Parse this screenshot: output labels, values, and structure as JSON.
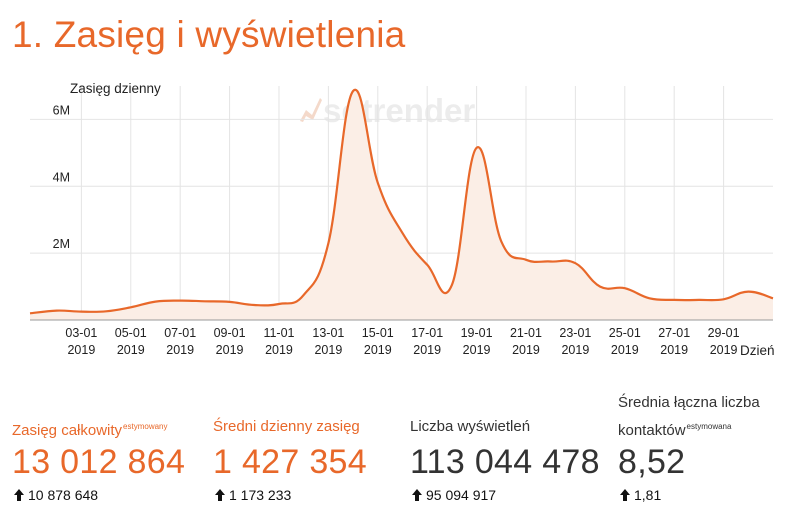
{
  "title": "1. Zasięg i wyświetlenia",
  "watermark": "sotrender",
  "colors": {
    "accent": "#e8682a",
    "text": "#333333",
    "area_fill": "#fbeee6",
    "grid": "#e4e4e4"
  },
  "chart_data": {
    "type": "area",
    "ylabel": "Zasięg dzienny",
    "xlabel": "Dzień",
    "ylim": [
      0,
      7000000
    ],
    "yticks": [
      {
        "value": 2000000,
        "label": "2M"
      },
      {
        "value": 4000000,
        "label": "4M"
      },
      {
        "value": 6000000,
        "label": "6M"
      }
    ],
    "xticks": [
      {
        "day": 2,
        "label": "03-01",
        "year": "2019"
      },
      {
        "day": 4,
        "label": "05-01",
        "year": "2019"
      },
      {
        "day": 6,
        "label": "07-01",
        "year": "2019"
      },
      {
        "day": 8,
        "label": "09-01",
        "year": "2019"
      },
      {
        "day": 10,
        "label": "11-01",
        "year": "2019"
      },
      {
        "day": 12,
        "label": "13-01",
        "year": "2019"
      },
      {
        "day": 14,
        "label": "15-01",
        "year": "2019"
      },
      {
        "day": 16,
        "label": "17-01",
        "year": "2019"
      },
      {
        "day": 18,
        "label": "19-01",
        "year": "2019"
      },
      {
        "day": 20,
        "label": "21-01",
        "year": "2019"
      },
      {
        "day": 22,
        "label": "23-01",
        "year": "2019"
      },
      {
        "day": 24,
        "label": "25-01",
        "year": "2019"
      },
      {
        "day": 26,
        "label": "27-01",
        "year": "2019"
      },
      {
        "day": 28,
        "label": "29-01",
        "year": "2019"
      }
    ],
    "x": [
      0,
      1,
      2,
      3,
      4,
      5,
      6,
      7,
      8,
      9,
      10,
      11,
      12,
      13,
      14,
      15,
      16,
      17,
      18,
      19,
      20,
      21,
      22,
      23,
      24,
      25,
      26,
      27,
      28,
      29,
      30
    ],
    "values": [
      200000,
      280000,
      250000,
      260000,
      380000,
      550000,
      580000,
      560000,
      540000,
      450000,
      480000,
      750000,
      2300000,
      6850000,
      4100000,
      2600000,
      1650000,
      1050000,
      5150000,
      2350000,
      1800000,
      1750000,
      1700000,
      1000000,
      950000,
      650000,
      600000,
      600000,
      620000,
      850000,
      650000
    ],
    "x_start": -0.08,
    "x_end": 30.0
  },
  "stats": [
    {
      "label": "Zasięg całkowity",
      "sup": "estymowany",
      "value": "13 012 864",
      "change": "10 878 648"
    },
    {
      "label": "Średni dzienny zasięg",
      "sup": "",
      "value": "1 427 354",
      "change": "1 173 233"
    },
    {
      "label": "Liczba wyświetleń",
      "sup": "",
      "value": "113 044 478",
      "change": "95 094 917"
    },
    {
      "label_line1": "Średnia łączna liczba",
      "label_line2": "kontaktów",
      "sup": "estymowana",
      "value": "8,52",
      "change": "1,81"
    }
  ]
}
